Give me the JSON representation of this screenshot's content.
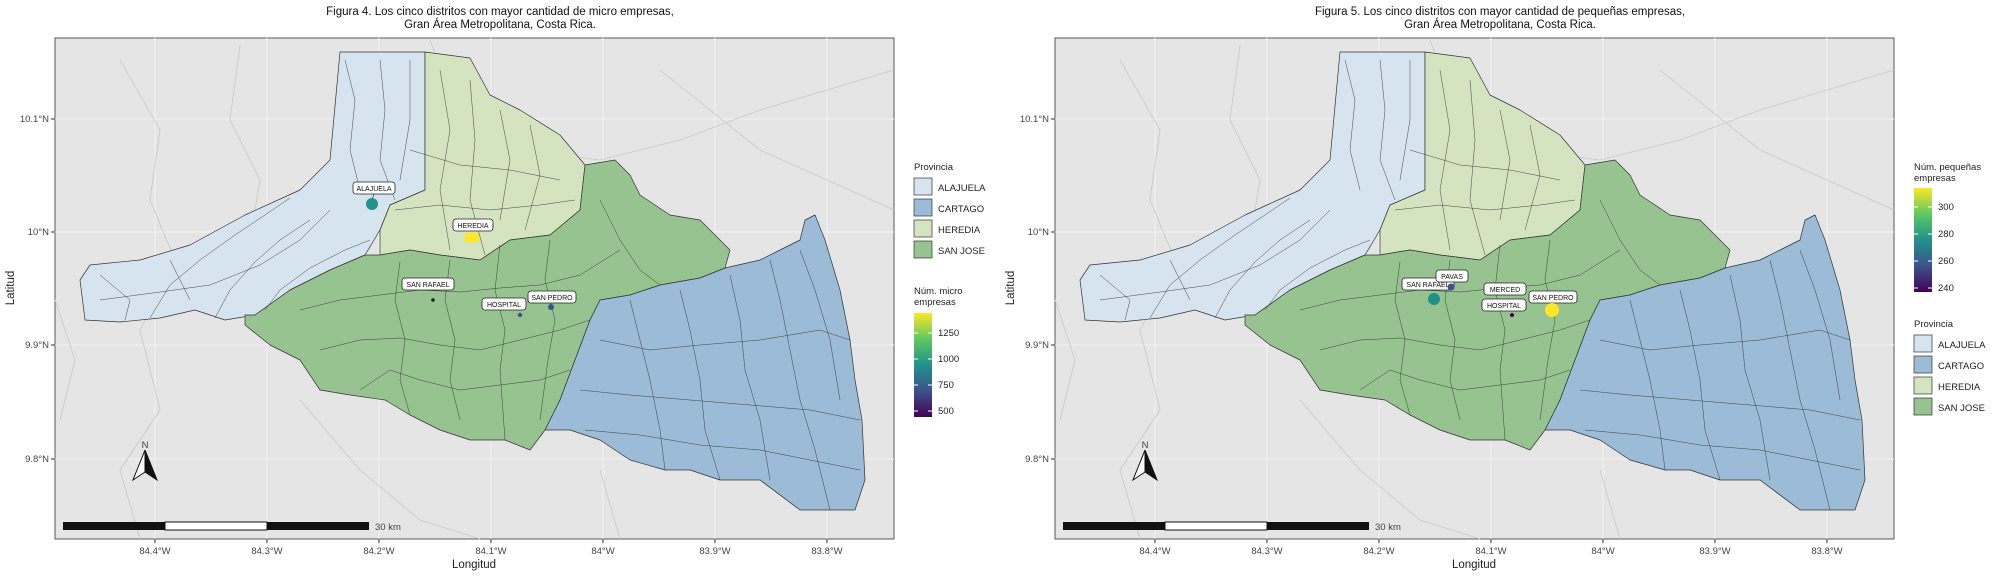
{
  "figures": [
    {
      "title_line1": "Figura 4. Los cinco distritos con mayor cantidad de micro empresas,",
      "title_line2": "Gran Área Metropolitana, Costa Rica.",
      "xlabel": "Longitud",
      "ylabel": "Latitud",
      "x_ticks": [
        "84.4°W",
        "84.3°W",
        "84.2°W",
        "84.1°W",
        "84°W",
        "83.9°W",
        "83.8°W"
      ],
      "y_ticks": [
        "10.1°N",
        "10°N",
        "9.9°N",
        "9.8°N"
      ],
      "scalebar_label": "30 km",
      "north_label": "N",
      "province_legend": {
        "title": "Provincia",
        "items": [
          {
            "label": "ALAJUELA",
            "color": "#d6e4ef"
          },
          {
            "label": "CARTAGO",
            "color": "#9bbbd6"
          },
          {
            "label": "HEREDIA",
            "color": "#d4e4c1"
          },
          {
            "label": "SAN JOSE",
            "color": "#96c38f"
          }
        ]
      },
      "value_legend": {
        "title_line1": "Núm. micro",
        "title_line2": "empresas",
        "ticks": [
          "1250",
          "1000",
          "750",
          "500"
        ]
      },
      "districts": [
        {
          "label": "ALAJUELA",
          "value_color": "#21918c"
        },
        {
          "label": "HEREDIA",
          "value_color": "#fde725"
        },
        {
          "label": "SAN RAFAEL",
          "value_color": "#440154"
        },
        {
          "label": "HOSPITAL",
          "value_color": "#3b528b"
        },
        {
          "label": "SAN PEDRO",
          "value_color": "#3b528b"
        }
      ]
    },
    {
      "title_line1": "Figura 5. Los cinco distritos con mayor cantidad de pequeñas empresas,",
      "title_line2": "Gran Área Metropolitana, Costa Rica.",
      "xlabel": "Longitud",
      "ylabel": "Latitud",
      "x_ticks": [
        "84.4°W",
        "84.3°W",
        "84.2°W",
        "84.1°W",
        "84°W",
        "83.9°W",
        "83.8°W"
      ],
      "y_ticks": [
        "10.1°N",
        "10°N",
        "9.9°N",
        "9.8°N"
      ],
      "scalebar_label": "30 km",
      "north_label": "N",
      "value_legend": {
        "title_line1": "Núm. pequeñas",
        "title_line2": "empresas",
        "ticks": [
          "300",
          "280",
          "260",
          "240"
        ]
      },
      "province_legend": {
        "title": "Provincia",
        "items": [
          {
            "label": "ALAJUELA",
            "color": "#d6e4ef"
          },
          {
            "label": "CARTAGO",
            "color": "#9bbbd6"
          },
          {
            "label": "HEREDIA",
            "color": "#d4e4c1"
          },
          {
            "label": "SAN JOSE",
            "color": "#96c38f"
          }
        ]
      },
      "districts": [
        {
          "label": "SAN RAFAEL",
          "value_color": "#21918c"
        },
        {
          "label": "PAVAS",
          "value_color": "#3b528b"
        },
        {
          "label": "MERCED",
          "value_color": "#440154"
        },
        {
          "label": "HOSPITAL",
          "value_color": "#440154"
        },
        {
          "label": "SAN PEDRO",
          "value_color": "#fde725"
        }
      ]
    }
  ]
}
